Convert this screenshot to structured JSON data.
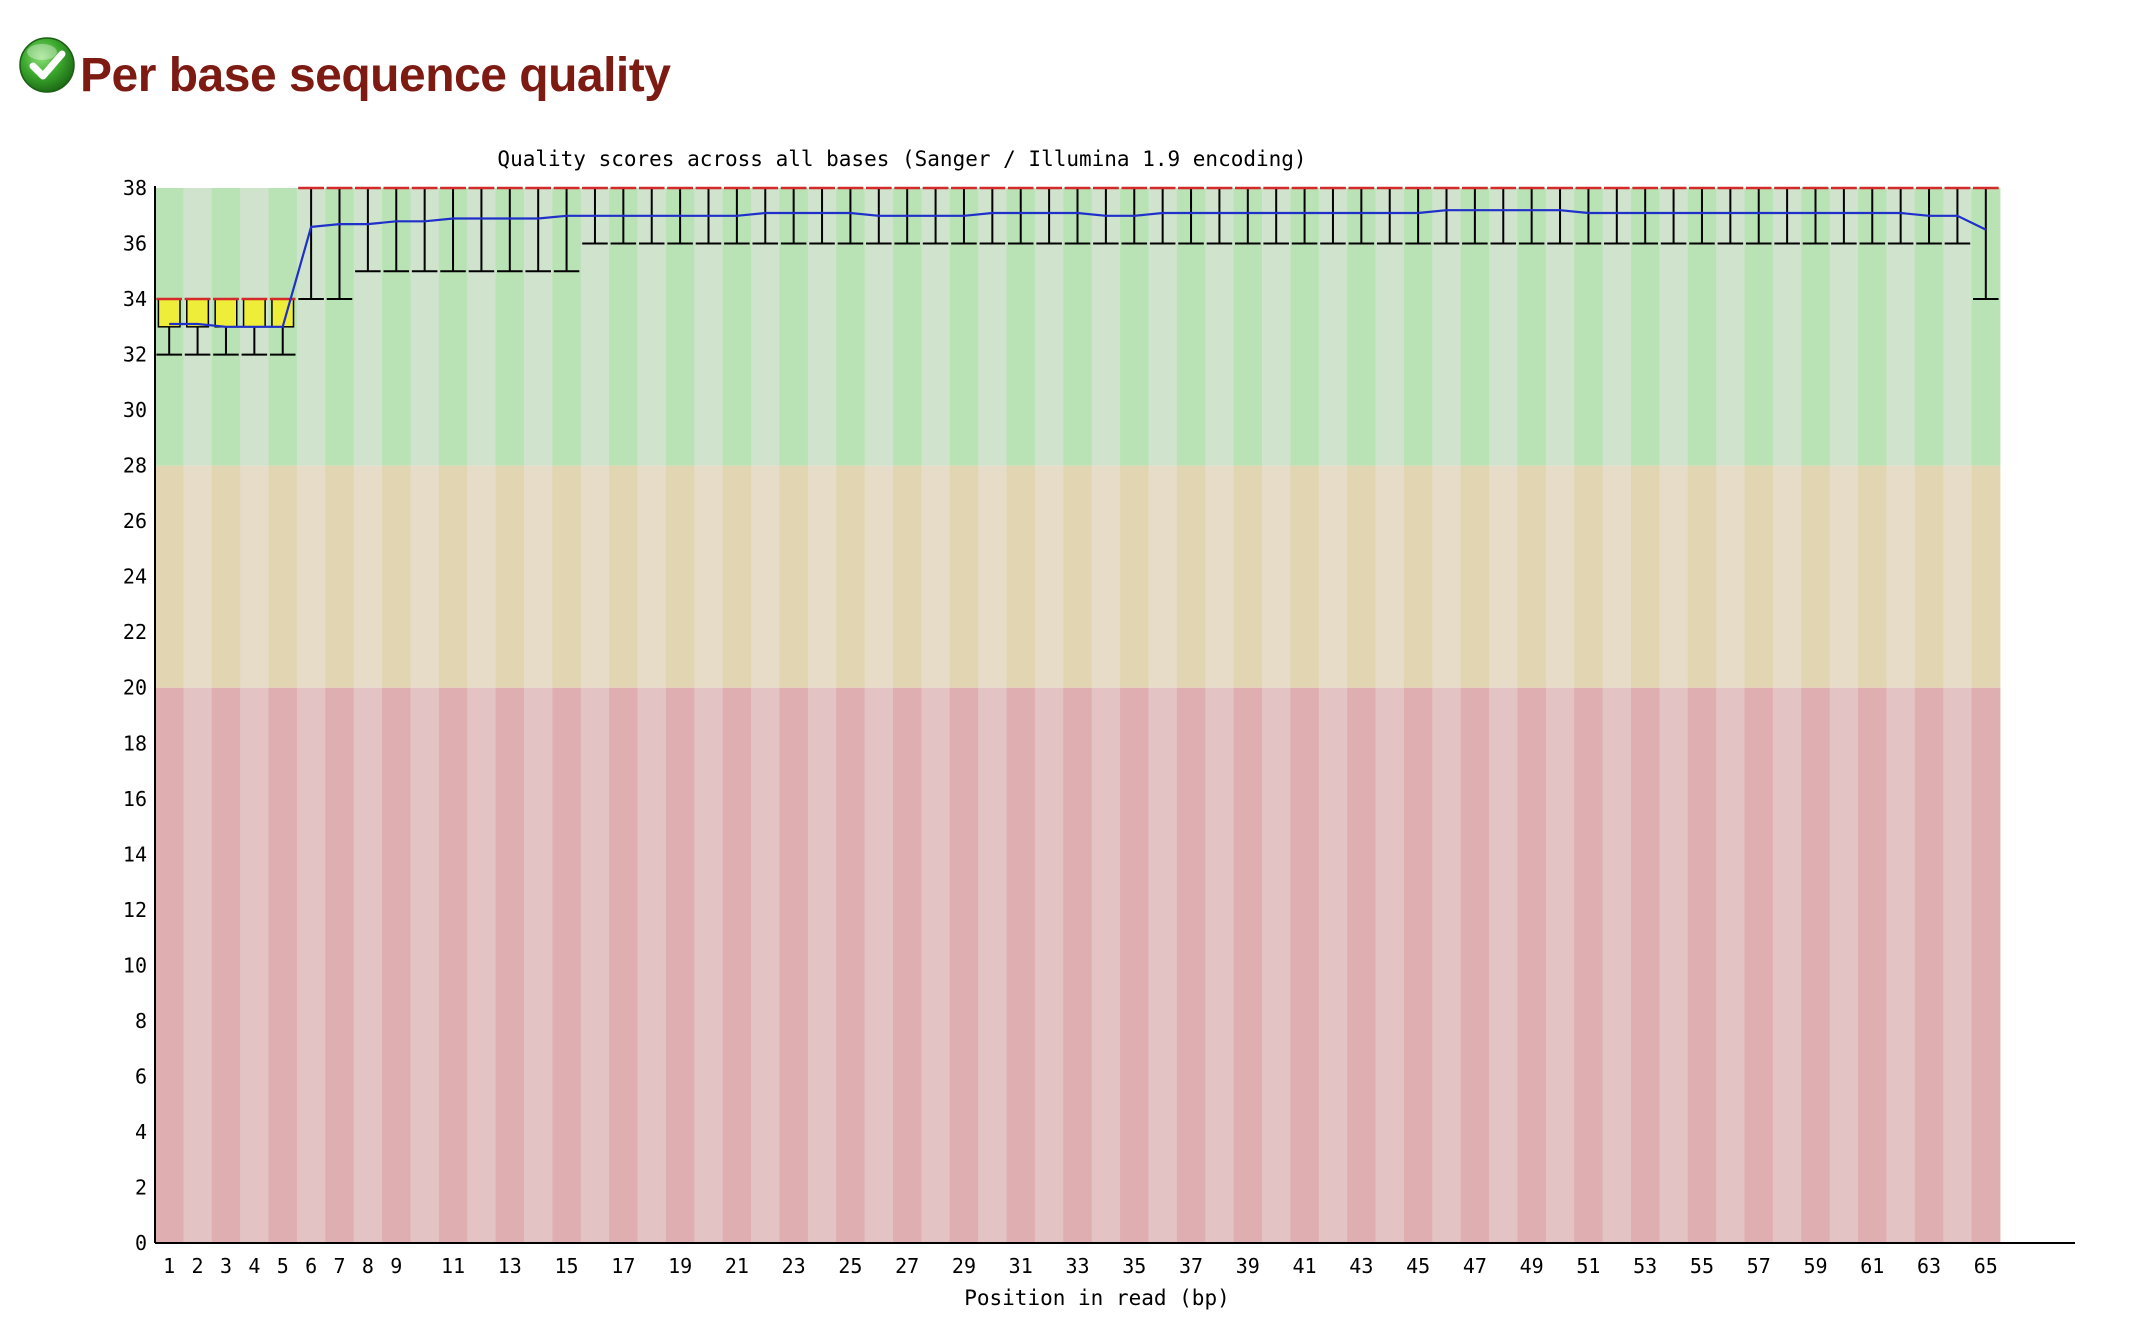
{
  "header": {
    "title": "Per base sequence quality",
    "status_icon": "check-icon"
  },
  "colors": {
    "good_zone": [
      "#b9e3b5",
      "#cfe3cd"
    ],
    "warn_zone": [
      "#e2d6b2",
      "#e6dcc7"
    ],
    "bad_zone": [
      "#dfaeb0",
      "#e4c3c5"
    ],
    "box_fill": "#eeee3a",
    "mean_line": "#1f2fc9",
    "median_line": "#d42a2a",
    "title_color": "#7d1a12"
  },
  "chart_data": {
    "type": "boxplot",
    "title": "Quality scores across all bases (Sanger / Illumina 1.9 encoding)",
    "xlabel": "Position in read (bp)",
    "ylabel": "",
    "ylim": [
      0,
      38
    ],
    "yticks": [
      0,
      2,
      4,
      6,
      8,
      10,
      12,
      14,
      16,
      18,
      20,
      22,
      24,
      26,
      28,
      30,
      32,
      34,
      36,
      38
    ],
    "zones": [
      {
        "name": "good",
        "from": 28,
        "to": 38
      },
      {
        "name": "reasonable",
        "from": 20,
        "to": 28
      },
      {
        "name": "poor",
        "from": 0,
        "to": 20
      }
    ],
    "xtick_labels": [
      "1",
      "2",
      "3",
      "4",
      "5",
      "6",
      "7",
      "8",
      "9",
      "",
      "11",
      "",
      "13",
      "",
      "15",
      "",
      "17",
      "",
      "19",
      "",
      "21",
      "",
      "23",
      "",
      "25",
      "",
      "27",
      "",
      "29",
      "",
      "31",
      "",
      "33",
      "",
      "35",
      "",
      "37",
      "",
      "39",
      "",
      "41",
      "",
      "43",
      "",
      "45",
      "",
      "47",
      "",
      "49",
      "",
      "51",
      "",
      "53",
      "",
      "55",
      "",
      "57",
      "",
      "59",
      "",
      "61",
      "",
      "63",
      "",
      "65"
    ],
    "positions": [
      1,
      2,
      3,
      4,
      5,
      6,
      7,
      8,
      9,
      10,
      11,
      12,
      13,
      14,
      15,
      16,
      17,
      18,
      19,
      20,
      21,
      22,
      23,
      24,
      25,
      26,
      27,
      28,
      29,
      30,
      31,
      32,
      33,
      34,
      35,
      36,
      37,
      38,
      39,
      40,
      41,
      42,
      43,
      44,
      45,
      46,
      47,
      48,
      49,
      50,
      51,
      52,
      53,
      54,
      55,
      56,
      57,
      58,
      59,
      60,
      61,
      62,
      63,
      64,
      65
    ],
    "mean": [
      33.1,
      33.1,
      33.0,
      33.0,
      33.0,
      36.6,
      36.7,
      36.7,
      36.8,
      36.8,
      36.9,
      36.9,
      36.9,
      36.9,
      37.0,
      37.0,
      37.0,
      37.0,
      37.0,
      37.0,
      37.0,
      37.1,
      37.1,
      37.1,
      37.1,
      37.0,
      37.0,
      37.0,
      37.0,
      37.1,
      37.1,
      37.1,
      37.1,
      37.0,
      37.0,
      37.1,
      37.1,
      37.1,
      37.1,
      37.1,
      37.1,
      37.1,
      37.1,
      37.1,
      37.1,
      37.2,
      37.2,
      37.2,
      37.2,
      37.2,
      37.1,
      37.1,
      37.1,
      37.1,
      37.1,
      37.1,
      37.1,
      37.1,
      37.1,
      37.1,
      37.1,
      37.1,
      37.0,
      37.0,
      36.5
    ],
    "median": [
      34,
      34,
      34,
      34,
      34,
      38,
      38,
      38,
      38,
      38,
      38,
      38,
      38,
      38,
      38,
      38,
      38,
      38,
      38,
      38,
      38,
      38,
      38,
      38,
      38,
      38,
      38,
      38,
      38,
      38,
      38,
      38,
      38,
      38,
      38,
      38,
      38,
      38,
      38,
      38,
      38,
      38,
      38,
      38,
      38,
      38,
      38,
      38,
      38,
      38,
      38,
      38,
      38,
      38,
      38,
      38,
      38,
      38,
      38,
      38,
      38,
      38,
      38,
      38,
      38
    ],
    "lower_quartile": [
      33,
      33,
      33,
      33,
      33,
      38,
      38,
      38,
      38,
      38,
      38,
      38,
      38,
      38,
      38,
      38,
      38,
      38,
      38,
      38,
      38,
      38,
      38,
      38,
      38,
      38,
      38,
      38,
      38,
      38,
      38,
      38,
      38,
      38,
      38,
      38,
      38,
      38,
      38,
      38,
      38,
      38,
      38,
      38,
      38,
      38,
      38,
      38,
      38,
      38,
      38,
      38,
      38,
      38,
      38,
      38,
      38,
      38,
      38,
      38,
      38,
      38,
      38,
      38,
      38
    ],
    "upper_quartile": [
      34,
      34,
      34,
      34,
      34,
      38,
      38,
      38,
      38,
      38,
      38,
      38,
      38,
      38,
      38,
      38,
      38,
      38,
      38,
      38,
      38,
      38,
      38,
      38,
      38,
      38,
      38,
      38,
      38,
      38,
      38,
      38,
      38,
      38,
      38,
      38,
      38,
      38,
      38,
      38,
      38,
      38,
      38,
      38,
      38,
      38,
      38,
      38,
      38,
      38,
      38,
      38,
      38,
      38,
      38,
      38,
      38,
      38,
      38,
      38,
      38,
      38,
      38,
      38,
      38
    ],
    "percentile_10": [
      32,
      32,
      32,
      32,
      32,
      34,
      34,
      35,
      35,
      35,
      35,
      35,
      35,
      35,
      35,
      36,
      36,
      36,
      36,
      36,
      36,
      36,
      36,
      36,
      36,
      36,
      36,
      36,
      36,
      36,
      36,
      36,
      36,
      36,
      36,
      36,
      36,
      36,
      36,
      36,
      36,
      36,
      36,
      36,
      36,
      36,
      36,
      36,
      36,
      36,
      36,
      36,
      36,
      36,
      36,
      36,
      36,
      36,
      36,
      36,
      36,
      36,
      36,
      36,
      34
    ],
    "percentile_90": [
      34,
      34,
      34,
      34,
      34,
      38,
      38,
      38,
      38,
      38,
      38,
      38,
      38,
      38,
      38,
      38,
      38,
      38,
      38,
      38,
      38,
      38,
      38,
      38,
      38,
      38,
      38,
      38,
      38,
      38,
      38,
      38,
      38,
      38,
      38,
      38,
      38,
      38,
      38,
      38,
      38,
      38,
      38,
      38,
      38,
      38,
      38,
      38,
      38,
      38,
      38,
      38,
      38,
      38,
      38,
      38,
      38,
      38,
      38,
      38,
      38,
      38,
      38,
      38,
      38
    ]
  }
}
